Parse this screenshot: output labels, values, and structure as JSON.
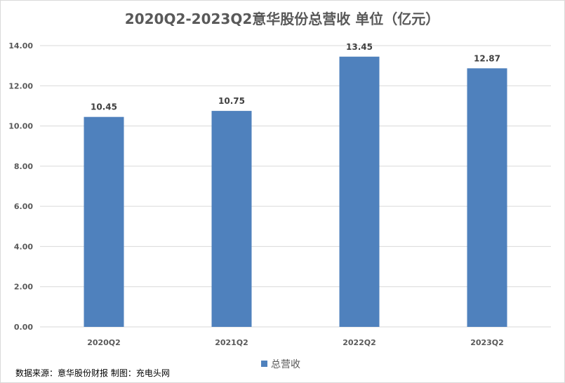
{
  "chart_data": {
    "type": "bar",
    "title": "2020Q2-2023Q2意华股份总营收 单位（亿元）",
    "categories": [
      "2020Q2",
      "2021Q2",
      "2022Q2",
      "2023Q2"
    ],
    "series": [
      {
        "name": "总营收",
        "values": [
          10.45,
          10.75,
          13.45,
          12.87
        ],
        "color": "#4f81bd"
      }
    ],
    "data_labels": [
      "10.45",
      "10.75",
      "13.45",
      "12.87"
    ],
    "ylim": [
      0,
      14
    ],
    "yticks": [
      "0.00",
      "2.00",
      "4.00",
      "6.00",
      "8.00",
      "10.00",
      "12.00",
      "14.00"
    ],
    "grid": true,
    "legend_position": "bottom",
    "xlabel": "",
    "ylabel": ""
  },
  "source": "数据来源：意华股份财报 制图：充电头网"
}
